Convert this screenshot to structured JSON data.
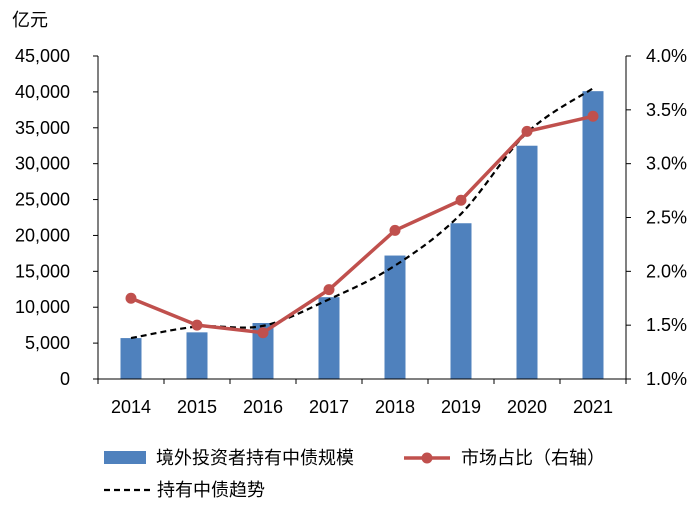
{
  "chart_data": {
    "type": "bar+line",
    "unit_label": "亿元",
    "categories": [
      "2014",
      "2015",
      "2016",
      "2017",
      "2018",
      "2019",
      "2020",
      "2021"
    ],
    "series": [
      {
        "name": "境外投资者持有中债规模",
        "type": "bar",
        "axis": "left",
        "color": "#4f81bd",
        "values": [
          5700,
          6500,
          7800,
          11400,
          17200,
          21700,
          32500,
          40100
        ]
      },
      {
        "name": "市场占比（右轴）",
        "type": "line",
        "axis": "right",
        "color": "#c0504d",
        "marker": "circle",
        "values": [
          1.75,
          1.5,
          1.43,
          1.83,
          2.38,
          2.66,
          3.3,
          3.44
        ]
      },
      {
        "name": "持有中债趋势",
        "type": "line",
        "axis": "left",
        "color": "#000000",
        "dashed": true,
        "smooth": true,
        "values": [
          5700,
          7300,
          7400,
          11100,
          15800,
          23000,
          34300,
          40500
        ]
      }
    ],
    "y_left": {
      "min": 0,
      "max": 45000,
      "step": 5000,
      "ticks": [
        "0",
        "5,000",
        "10,000",
        "15,000",
        "20,000",
        "25,000",
        "30,000",
        "35,000",
        "40,000",
        "45,000"
      ]
    },
    "y_right": {
      "min": 1.0,
      "max": 4.0,
      "step": 0.5,
      "ticks": [
        "1.0%",
        "1.5%",
        "2.0%",
        "2.5%",
        "3.0%",
        "3.5%",
        "4.0%"
      ]
    },
    "grid": false,
    "legend_position": "bottom"
  }
}
